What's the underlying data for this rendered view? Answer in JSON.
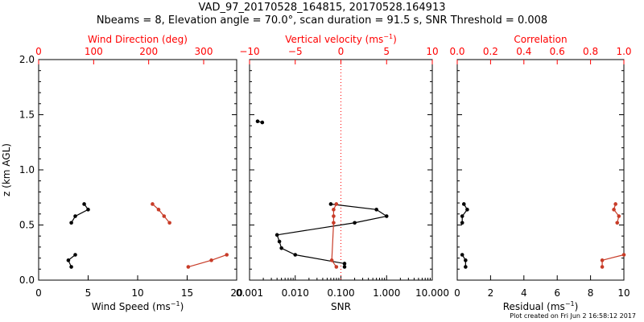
{
  "header": {
    "title_line1": "VAD_97_20170528_164815, 20170528.164913",
    "title_line2": "Nbeams = 8, Elevation angle = 70.0°, scan duration = 91.5 s, SNR Threshold = 0.008"
  },
  "footer": {
    "text": "Plot created on Fri Jun  2 16:58:12 2017"
  },
  "colors": {
    "primary": "#000000",
    "accent": "#c83c28",
    "red_axis": "#ff0000"
  },
  "chart_data": [
    {
      "type": "line",
      "panel": "wind",
      "ylabel": "z (km AGL)",
      "ylim": [
        0.0,
        2.0
      ],
      "yticks": [
        0.0,
        0.5,
        1.0,
        1.5,
        2.0
      ],
      "yticklabels": [
        "0.0",
        "0.5",
        "1.0",
        "1.5",
        "2.0"
      ],
      "bottom_axis": {
        "label": "Wind Speed (ms",
        "label_sup": "−1",
        "label_end": ")",
        "range": [
          0,
          20
        ],
        "ticks": [
          0,
          5,
          10,
          15,
          20
        ],
        "ticklabels": [
          "0",
          "5",
          "10",
          "15",
          "20"
        ]
      },
      "top_axis": {
        "label": "Wind Direction (deg)",
        "range": [
          0,
          360
        ],
        "ticks": [
          0,
          100,
          200,
          300
        ],
        "ticklabels": [
          "0",
          "100",
          "200",
          "300"
        ]
      },
      "series": [
        {
          "axis": "bottom",
          "color": "#000000",
          "x": [
            3.3,
            3.0,
            3.7
          ],
          "y": [
            0.12,
            0.18,
            0.23
          ]
        },
        {
          "axis": "bottom",
          "color": "#000000",
          "x": [
            3.3,
            3.7,
            5.0,
            4.6
          ],
          "y": [
            0.52,
            0.58,
            0.64,
            0.69
          ]
        },
        {
          "axis": "top",
          "color": "#c83c28",
          "x": [
            272,
            314,
            342
          ],
          "y": [
            0.12,
            0.18,
            0.23
          ]
        },
        {
          "axis": "top",
          "color": "#c83c28",
          "x": [
            238,
            228,
            218,
            207
          ],
          "y": [
            0.52,
            0.58,
            0.64,
            0.69
          ]
        }
      ]
    },
    {
      "type": "line",
      "panel": "vertical",
      "bottom_axis": {
        "label": "SNR",
        "scale": "log",
        "range": [
          0.001,
          10
        ],
        "ticks": [
          0.001,
          0.01,
          0.1,
          1,
          10
        ],
        "ticklabels": [
          "0.001",
          "0.010",
          "0.100",
          "1.000",
          "10.000"
        ]
      },
      "top_axis": {
        "label": "Vertical velocity (ms",
        "label_sup": "−1",
        "label_end": ")",
        "range": [
          -10,
          10
        ],
        "ticks": [
          -10,
          -5,
          0,
          5,
          10
        ],
        "ticklabels": [
          "−10",
          "−5",
          "0",
          "5",
          "10"
        ]
      },
      "reference_line": {
        "axis": "top",
        "x": 0,
        "style": "dotted"
      },
      "series": [
        {
          "axis": "bottom",
          "color": "#000000",
          "x": [
            0.0015,
            0.0019
          ],
          "y": [
            1.44,
            1.43
          ]
        },
        {
          "axis": "bottom",
          "color": "#000000",
          "x": [
            0.12,
            0.12,
            0.01,
            0.005,
            0.0045,
            0.004,
            0.2,
            1.0,
            0.6,
            0.06
          ],
          "y": [
            0.12,
            0.15,
            0.23,
            0.29,
            0.35,
            0.41,
            0.52,
            0.58,
            0.64,
            0.69
          ]
        },
        {
          "axis": "top",
          "color": "#c83c28",
          "x": [
            -0.5,
            -1.0,
            -0.8,
            -0.8,
            -0.8,
            -0.5
          ],
          "y": [
            0.12,
            0.18,
            0.52,
            0.58,
            0.64,
            0.69
          ]
        }
      ]
    },
    {
      "type": "line",
      "panel": "residual",
      "bottom_axis": {
        "label": "Residual (ms",
        "label_sup": "−1",
        "label_end": ")",
        "range": [
          0,
          10
        ],
        "ticks": [
          0,
          2,
          4,
          6,
          8,
          10
        ],
        "ticklabels": [
          "0",
          "2",
          "4",
          "6",
          "8",
          "10"
        ]
      },
      "top_axis": {
        "label": "Correlation",
        "range": [
          0.0,
          1.0
        ],
        "ticks": [
          0.0,
          0.2,
          0.4,
          0.6,
          0.8,
          1.0
        ],
        "ticklabels": [
          "0.0",
          "0.2",
          "0.4",
          "0.6",
          "0.8",
          "1.0"
        ]
      },
      "series": [
        {
          "axis": "bottom",
          "color": "#000000",
          "x": [
            0.5,
            0.5,
            0.3
          ],
          "y": [
            0.12,
            0.18,
            0.23
          ]
        },
        {
          "axis": "bottom",
          "color": "#000000",
          "x": [
            0.3,
            0.3,
            0.6,
            0.4
          ],
          "y": [
            0.52,
            0.58,
            0.64,
            0.69
          ]
        },
        {
          "axis": "top",
          "color": "#c83c28",
          "x": [
            0.87,
            0.87,
            1.0
          ],
          "y": [
            0.12,
            0.18,
            0.23
          ]
        },
        {
          "axis": "top",
          "color": "#c83c28",
          "x": [
            0.96,
            0.97,
            0.94,
            0.95
          ],
          "y": [
            0.52,
            0.58,
            0.64,
            0.69
          ]
        }
      ]
    }
  ]
}
